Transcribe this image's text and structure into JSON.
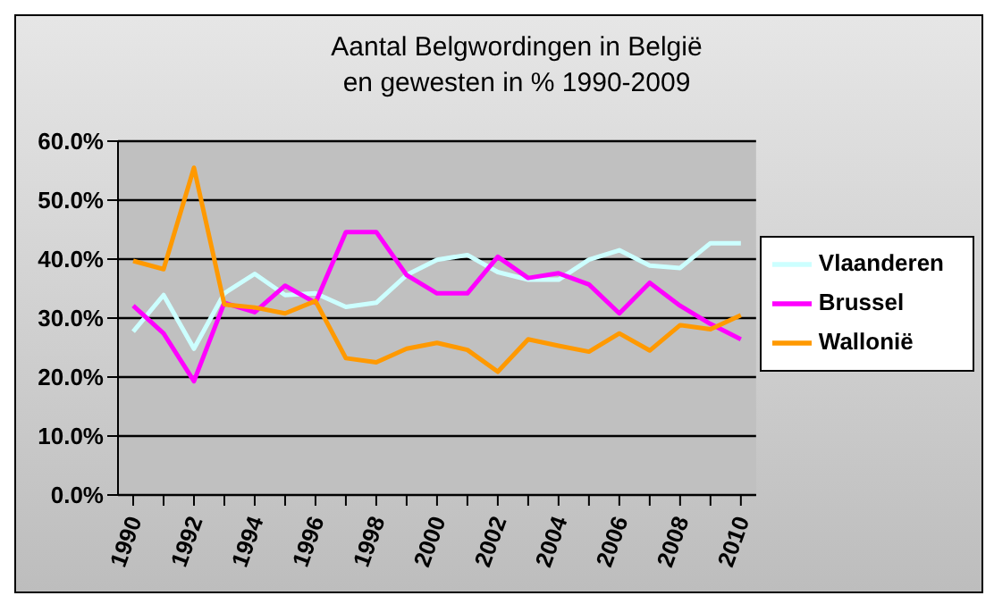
{
  "chart_data": {
    "type": "line",
    "title": "Aantal Belgwordingen in België\nen gewesten in % 1990-2009",
    "categories": [
      "1990",
      null,
      "1992",
      null,
      "1994",
      null,
      "1996",
      null,
      "1998",
      null,
      "2000",
      null,
      "2002",
      null,
      "2004",
      null,
      "2006",
      null,
      "2008",
      null,
      "2010"
    ],
    "series": [
      {
        "name": "Vlaanderen",
        "color": "#ccffff",
        "values": [
          27.7,
          33.9,
          24.8,
          34.2,
          37.5,
          33.9,
          34.2,
          31.9,
          32.6,
          37.3,
          39.9,
          40.7,
          37.8,
          36.5,
          36.5,
          39.9,
          41.5,
          38.9,
          38.5,
          42.7,
          42.7
        ]
      },
      {
        "name": "Brussel",
        "color": "#ff00ff",
        "values": [
          32.1,
          27.4,
          19.3,
          32.6,
          31.0,
          35.5,
          32.6,
          44.6,
          44.6,
          37.3,
          34.2,
          34.2,
          40.4,
          36.8,
          37.6,
          35.7,
          30.8,
          36.0,
          32.1,
          29.0,
          26.4
        ]
      },
      {
        "name": "Wallonië",
        "color": "#ff9900",
        "values": [
          39.7,
          38.3,
          55.5,
          32.3,
          31.8,
          30.8,
          32.9,
          23.2,
          22.5,
          24.8,
          25.8,
          24.6,
          20.9,
          26.4,
          25.3,
          24.3,
          27.4,
          24.5,
          28.8,
          28.1,
          30.5
        ]
      }
    ],
    "ylim": [
      0,
      60
    ],
    "yticks": [
      {
        "value": 0,
        "label": "0.0%"
      },
      {
        "value": 10,
        "label": "10.0%"
      },
      {
        "value": 20,
        "label": "20.0%"
      },
      {
        "value": 30,
        "label": "30.0%"
      },
      {
        "value": 40,
        "label": "40.0%"
      },
      {
        "value": 50,
        "label": "50.0%"
      },
      {
        "value": 60,
        "label": "60.0%"
      }
    ],
    "grid": "y",
    "legend": "right",
    "marker": "none",
    "line_style": "solid"
  }
}
